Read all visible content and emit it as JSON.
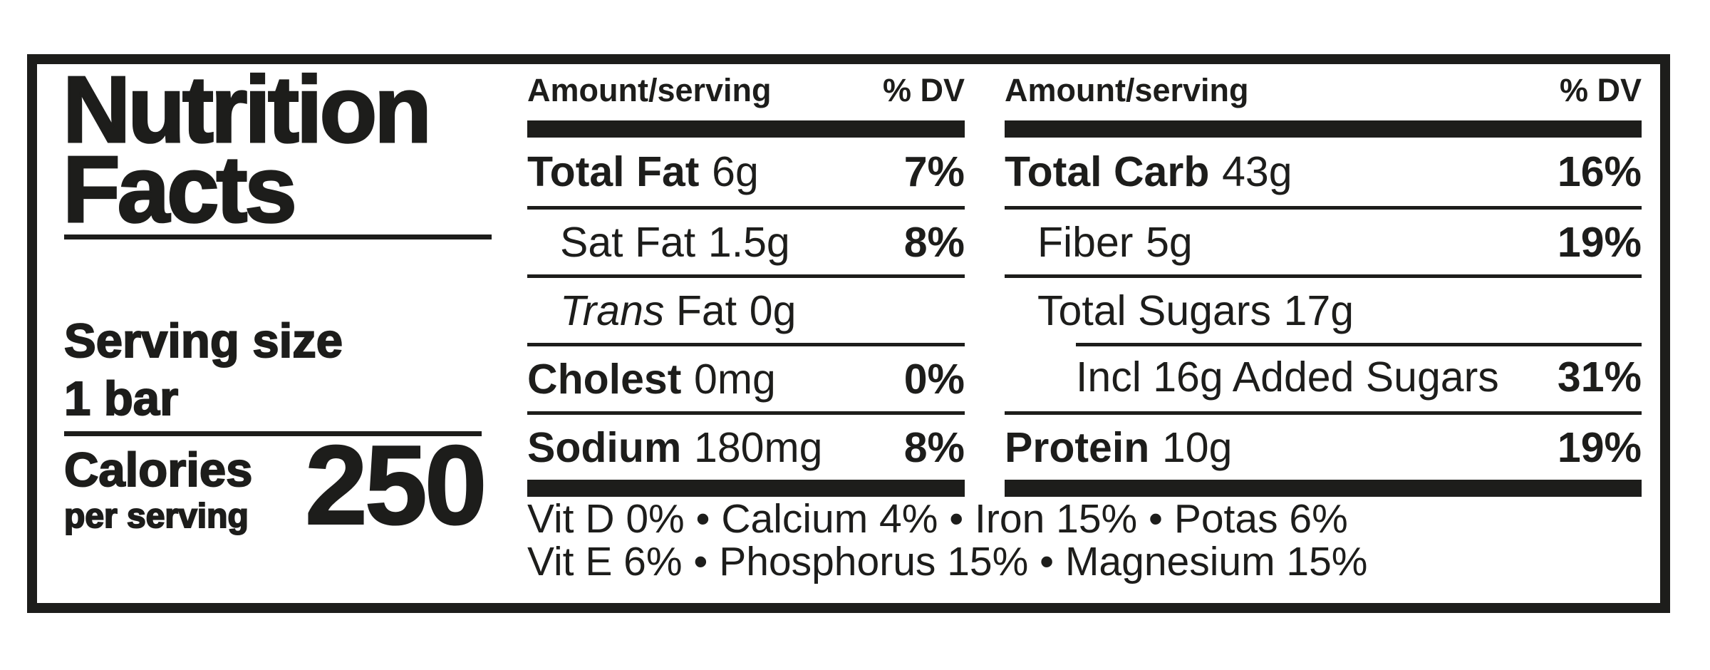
{
  "colors": {
    "ink": "#1d1d1b",
    "background": "#ffffff"
  },
  "label": {
    "title": {
      "line1": "Nutrition",
      "line2": "Facts"
    },
    "serving": {
      "label": "Serving size",
      "value": "1 bar"
    },
    "calories": {
      "label": "Calories",
      "sublabel": "per serving",
      "value": "250"
    }
  },
  "fat_column": {
    "header": {
      "amount": "Amount/serving",
      "dv": "% DV"
    },
    "rows": [
      {
        "name": "Total Fat",
        "value": "6g",
        "dv": "7%"
      },
      {
        "name": "Sat Fat",
        "value": "1.5g",
        "dv": "8%"
      },
      {
        "name_italic": "Trans",
        "name": " Fat",
        "value": "0g",
        "dv": ""
      },
      {
        "name": "Cholest",
        "value": "0mg",
        "dv": "0%"
      },
      {
        "name": "Sodium",
        "value": "180mg",
        "dv": "8%"
      }
    ]
  },
  "carb_column": {
    "header": {
      "amount": "Amount/serving",
      "dv": "% DV"
    },
    "rows": [
      {
        "name": "Total Carb",
        "value": "43g",
        "dv": "16%"
      },
      {
        "name": "Fiber",
        "value": "5g",
        "dv": "19%"
      },
      {
        "name": "Total Sugars",
        "value": "17g",
        "dv": ""
      },
      {
        "name": "Incl 16g Added Sugars",
        "value": "",
        "dv": "31%"
      },
      {
        "name": "Protein",
        "value": "10g",
        "dv": "19%"
      }
    ]
  },
  "micronutrients": {
    "line1": "Vit D 0% • Calcium 4% • Iron 15% • Potas 6%",
    "line2": "Vit E 6% • Phosphorus 15% • Magnesium 15%"
  }
}
